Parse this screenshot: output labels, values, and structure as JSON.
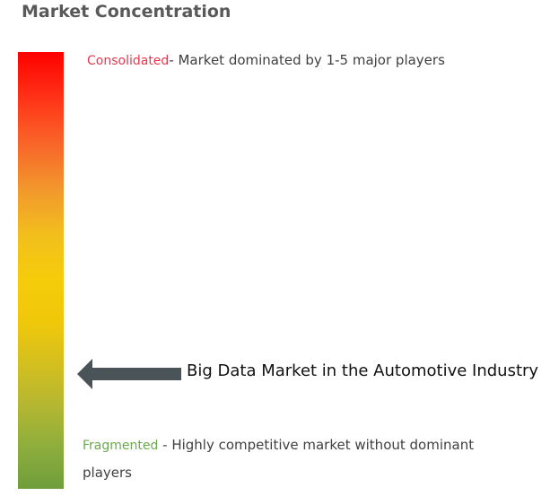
{
  "title": "Market Concentration",
  "consolidated": {
    "label": "Consolidated",
    "description": "- Market dominated by 1-5 major players",
    "color": "#e8384f"
  },
  "fragmented": {
    "label": "Fragmented",
    "description": " - Highly competitive market without dominant players",
    "color": "#6aa84f"
  },
  "marker": {
    "label": "Big Data Market in the Automotive Industry",
    "icon": "arrow-left-icon",
    "color": "#4a5358"
  },
  "scale": {
    "top_color": "#ff0000",
    "bottom_color": "#6f9e3c"
  }
}
